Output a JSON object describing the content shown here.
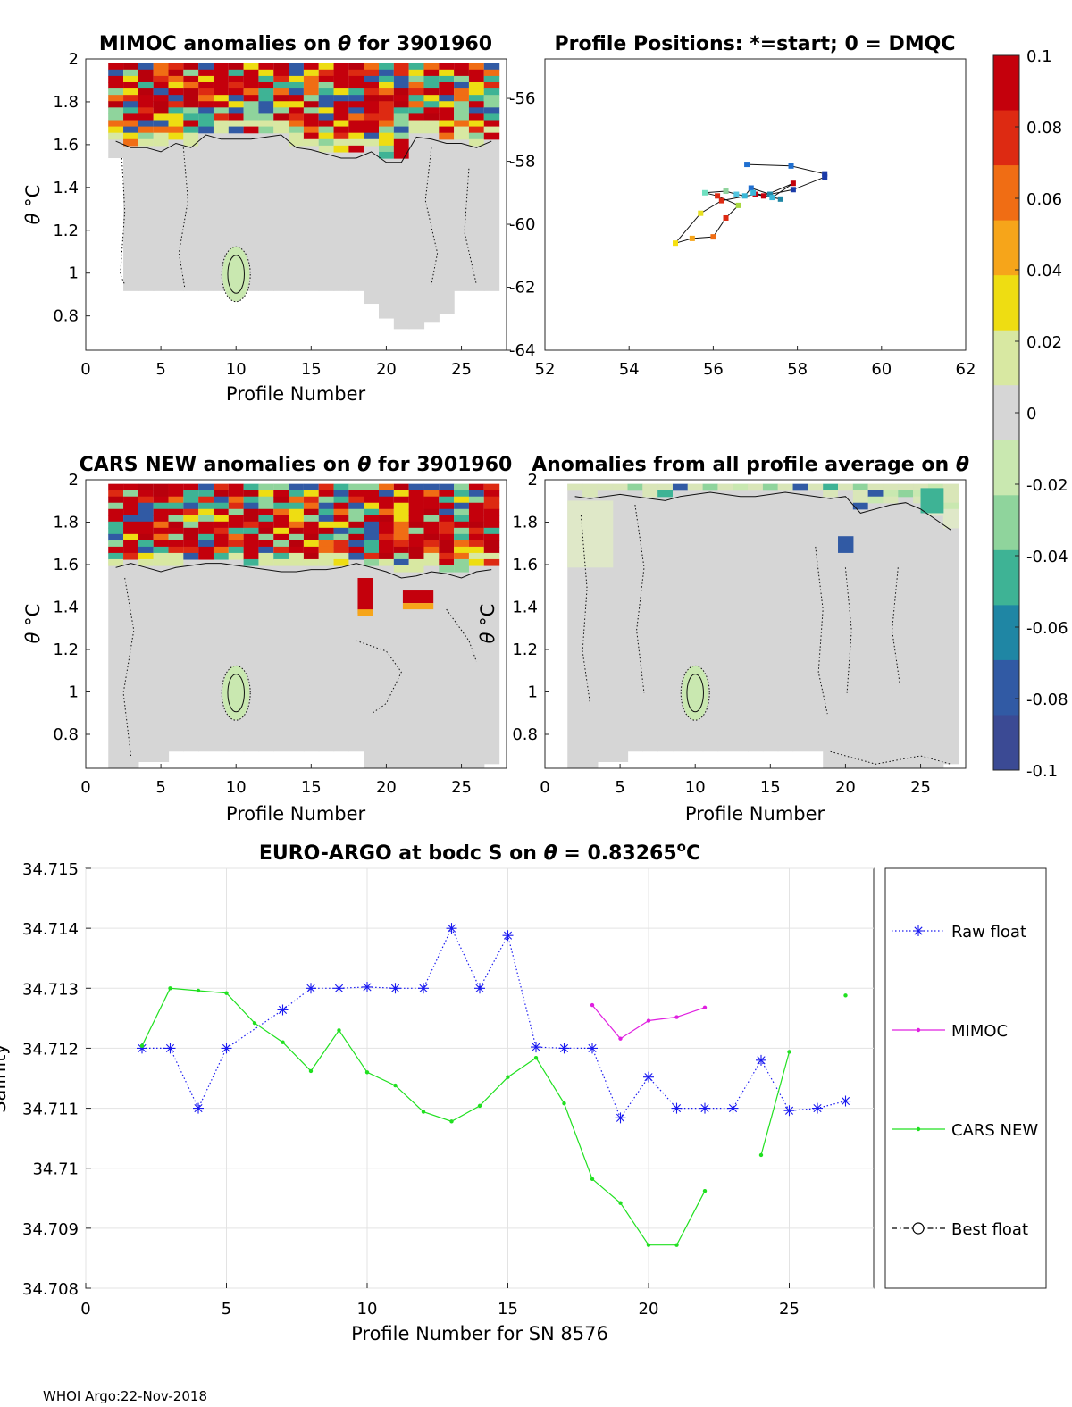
{
  "footer": "WHOI Argo:22-Nov-2018",
  "panel1": {
    "title_pre": "MIMOC anomalies on ",
    "title_sym": "θ",
    "title_post": "  for 3901960",
    "xlabel": "Profile Number",
    "ylabel_sym": "θ",
    "ylabel_unit": " °C",
    "xticks": [
      "0",
      "5",
      "10",
      "15",
      "20",
      "25"
    ],
    "yticks": [
      "2",
      "1.8",
      "1.6",
      "1.4",
      "1.2",
      "1",
      "0.8"
    ]
  },
  "panel2": {
    "title": "Profile Positions: *=start; 0 = DMQC",
    "xticks": [
      "52",
      "54",
      "56",
      "58",
      "60",
      "62"
    ],
    "yticks": [
      "-56",
      "-58",
      "-60",
      "-62",
      "-64"
    ]
  },
  "panel3": {
    "title_pre": "CARS NEW anomalies on ",
    "title_sym": "θ",
    "title_post": " for 3901960",
    "xlabel": "Profile Number",
    "ylabel_sym": "θ",
    "ylabel_unit": " °C",
    "xticks": [
      "0",
      "5",
      "10",
      "15",
      "20",
      "25"
    ],
    "yticks": [
      "2",
      "1.8",
      "1.6",
      "1.4",
      "1.2",
      "1",
      "0.8"
    ]
  },
  "panel4": {
    "title_pre": "Anomalies from all profile average on ",
    "title_sym": "θ",
    "xlabel": "Profile Number",
    "ylabel_sym": "θ",
    "ylabel_unit": " °C",
    "xticks": [
      "0",
      "5",
      "10",
      "15",
      "20",
      "25"
    ],
    "yticks": [
      "2",
      "1.8",
      "1.6",
      "1.4",
      "1.2",
      "1",
      "0.8"
    ]
  },
  "colorbar": {
    "ticks": [
      "0.1",
      "0.08",
      "0.06",
      "0.04",
      "0.02",
      "0",
      "-0.02",
      "-0.04",
      "-0.06",
      "-0.08",
      "-0.1"
    ],
    "colors": [
      "#c4000c",
      "#dd2a12",
      "#f06d14",
      "#f6a51a",
      "#eedd12",
      "#d8e8a2",
      "#d6d6d6",
      "#c9e8b0",
      "#8fd49c",
      "#3eb395",
      "#1f86a4",
      "#315aa4",
      "#3b4a94"
    ]
  },
  "chart_data": {
    "type": "line",
    "title_pre": "EURO-ARGO at bodc S on ",
    "title_sym": "θ",
    "title_mid": " = 0.83265",
    "title_sup": "o",
    "title_post": "C",
    "xlabel": "Profile Number for SN 8576",
    "ylabel": "Salinity",
    "xlim": [
      0,
      28
    ],
    "ylim": [
      34.708,
      34.715
    ],
    "xticks": [
      "0",
      "5",
      "10",
      "15",
      "20",
      "25"
    ],
    "yticks": [
      "34.715",
      "34.714",
      "34.713",
      "34.712",
      "34.711",
      "34.71",
      "34.709",
      "34.708"
    ],
    "grid": true,
    "legend_position": "right",
    "series": [
      {
        "name": "Raw float",
        "color": "#1a1af0",
        "style": "dotted-star",
        "x": [
          2,
          3,
          4,
          5,
          7,
          8,
          9,
          10,
          11,
          12,
          13,
          14,
          15,
          16,
          17,
          18,
          19,
          20,
          21,
          22,
          23,
          24,
          25,
          26,
          27
        ],
        "y": [
          34.712,
          34.712,
          34.711,
          34.712,
          34.71264,
          34.713,
          34.713,
          34.71302,
          34.713,
          34.713,
          34.714,
          34.713,
          34.71388,
          34.71202,
          34.712,
          34.712,
          34.71084,
          34.71152,
          34.711,
          34.711,
          34.711,
          34.7118,
          34.71096,
          34.711,
          34.71112
        ]
      },
      {
        "name": "MIMOC",
        "color": "#e020e0",
        "style": "solid-dot",
        "x": [
          18,
          19,
          20,
          21,
          22
        ],
        "y": [
          34.71272,
          34.71216,
          34.71246,
          34.71252,
          34.71268
        ]
      },
      {
        "name": "CARS NEW",
        "color": "#20e020",
        "style": "solid-dot",
        "x": [
          2,
          3,
          4,
          5,
          6,
          7,
          8,
          9,
          10,
          11,
          12,
          13,
          14,
          15,
          16,
          17,
          18,
          19,
          20,
          21,
          22,
          null,
          24,
          25,
          null,
          27
        ],
        "y": [
          34.71204,
          34.713,
          34.71296,
          34.71292,
          34.71242,
          34.7121,
          34.71162,
          34.7123,
          34.7116,
          34.71138,
          34.71094,
          34.71078,
          34.71104,
          34.71152,
          34.71184,
          34.71108,
          34.70982,
          34.70942,
          34.70872,
          34.70872,
          34.70962,
          null,
          34.71022,
          34.71194,
          null,
          34.71288
        ]
      },
      {
        "name": "Best float",
        "color": "#000000",
        "style": "dashdot-circle",
        "x": [],
        "y": []
      }
    ]
  }
}
